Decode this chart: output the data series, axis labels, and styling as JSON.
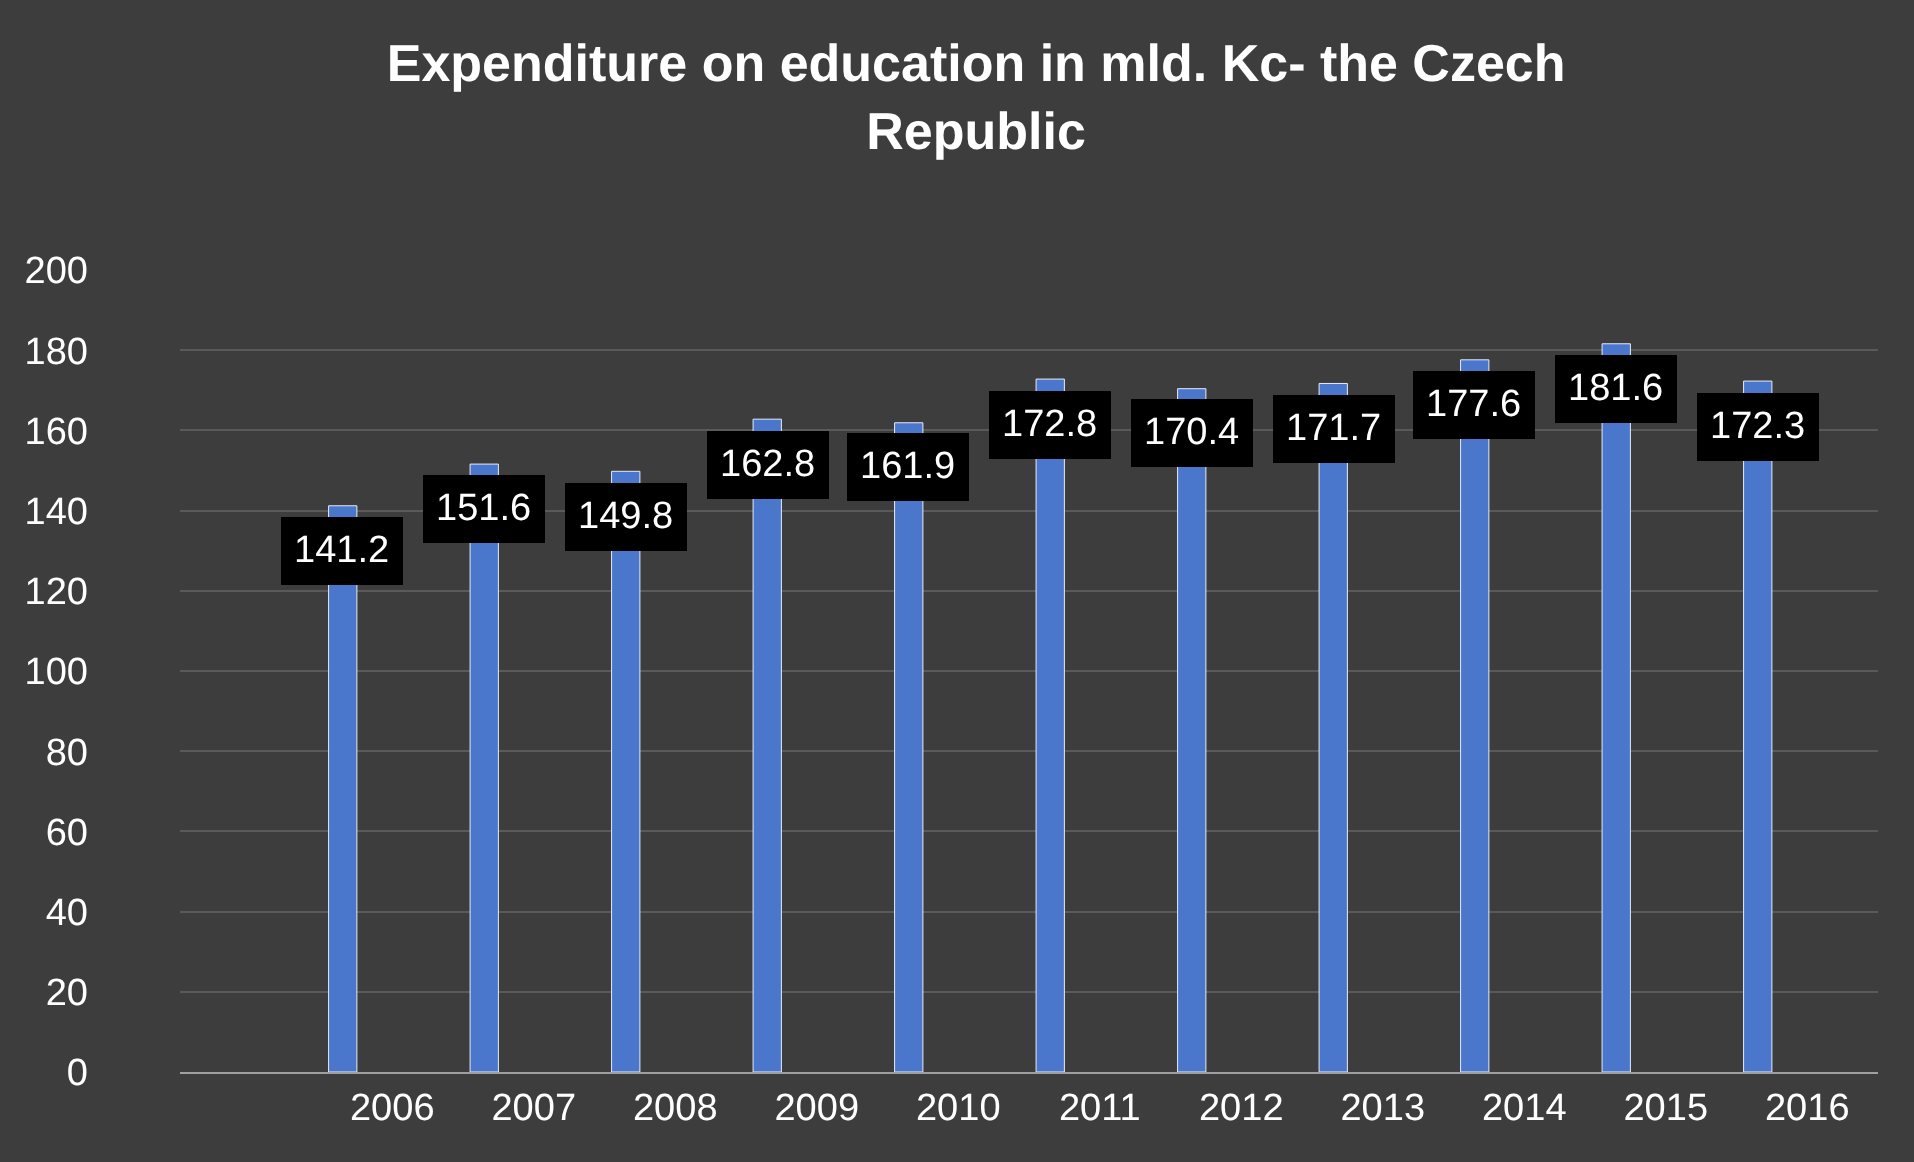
{
  "chart_data": {
    "type": "bar",
    "title": "Expenditure on education in mld. Kc- the Czech Republic",
    "categories": [
      null,
      "2006",
      "2007",
      "2008",
      "2009",
      "2010",
      "2011",
      "2012",
      "2013",
      "2014",
      "2015",
      "2016"
    ],
    "values": [
      null,
      141.2,
      151.6,
      149.8,
      162.8,
      161.9,
      172.8,
      170.4,
      171.7,
      177.6,
      181.6,
      172.3
    ],
    "color": "#4a76cc",
    "ylim": [
      0,
      200
    ],
    "yticks": [
      0,
      20,
      40,
      60,
      80,
      100,
      120,
      140,
      160,
      180,
      200
    ],
    "grid": "y",
    "data_labels": true
  }
}
